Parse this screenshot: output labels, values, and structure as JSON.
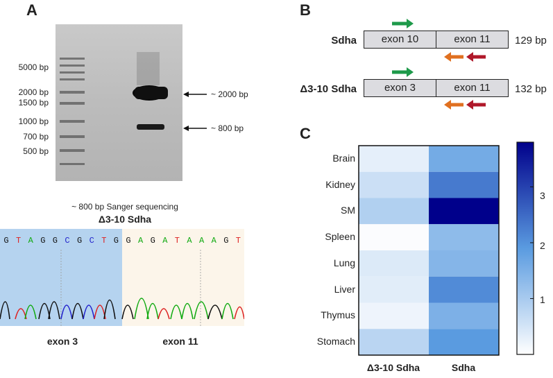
{
  "panel_a": {
    "letter": "A",
    "ladder": [
      "5000 bp",
      "2000 bp",
      "1500 bp",
      "1000 bp",
      "700 bp",
      "500 bp"
    ],
    "bands": [
      "~ 2000 bp",
      "~ 800 bp"
    ],
    "sanger_caption": "~ 800 bp Sanger sequencing",
    "sanger_title": "Δ3-10 Sdha",
    "sequence": [
      "G",
      "T",
      "A",
      "G",
      "G",
      "C",
      "G",
      "C",
      "T",
      "G",
      "G",
      "A",
      "G",
      "A",
      "T",
      "A",
      "A",
      "A",
      "G",
      "T"
    ],
    "exon_left": "exon 3",
    "exon_right": "exon 11"
  },
  "panel_b": {
    "letter": "B",
    "rows": [
      {
        "gene": "Sdha",
        "exon_a": "exon 10",
        "exon_b": "exon 11",
        "size": "129 bp"
      },
      {
        "gene": "Δ3-10 Sdha",
        "exon_a": "exon 3",
        "exon_b": "exon 11",
        "size": "132 bp"
      }
    ],
    "colors": {
      "forward": "#1e9a4a",
      "reverse_outer": "#e07020",
      "reverse_inner": "#b0182a"
    }
  },
  "panel_c": {
    "letter": "C",
    "scale_ticks": [
      "3",
      "2",
      "1"
    ]
  },
  "chart_data": {
    "type": "heatmap",
    "rows": [
      "Brain",
      "Kidney",
      "SM",
      "Spleen",
      "Lung",
      "Liver",
      "Thymus",
      "Stomach"
    ],
    "columns": [
      "Δ3-10 Sdha",
      "Sdha"
    ],
    "values": [
      [
        0.3,
        1.6
      ],
      [
        0.6,
        2.3
      ],
      [
        0.9,
        3.8
      ],
      [
        0.05,
        1.3
      ],
      [
        0.4,
        1.4
      ],
      [
        0.35,
        2.1
      ],
      [
        0.2,
        1.5
      ],
      [
        0.8,
        1.9
      ]
    ],
    "color_range": [
      0,
      3.8
    ],
    "colorscale": [
      "#ffffff",
      "#5a9be0",
      "#00008b"
    ],
    "legend": "right"
  }
}
